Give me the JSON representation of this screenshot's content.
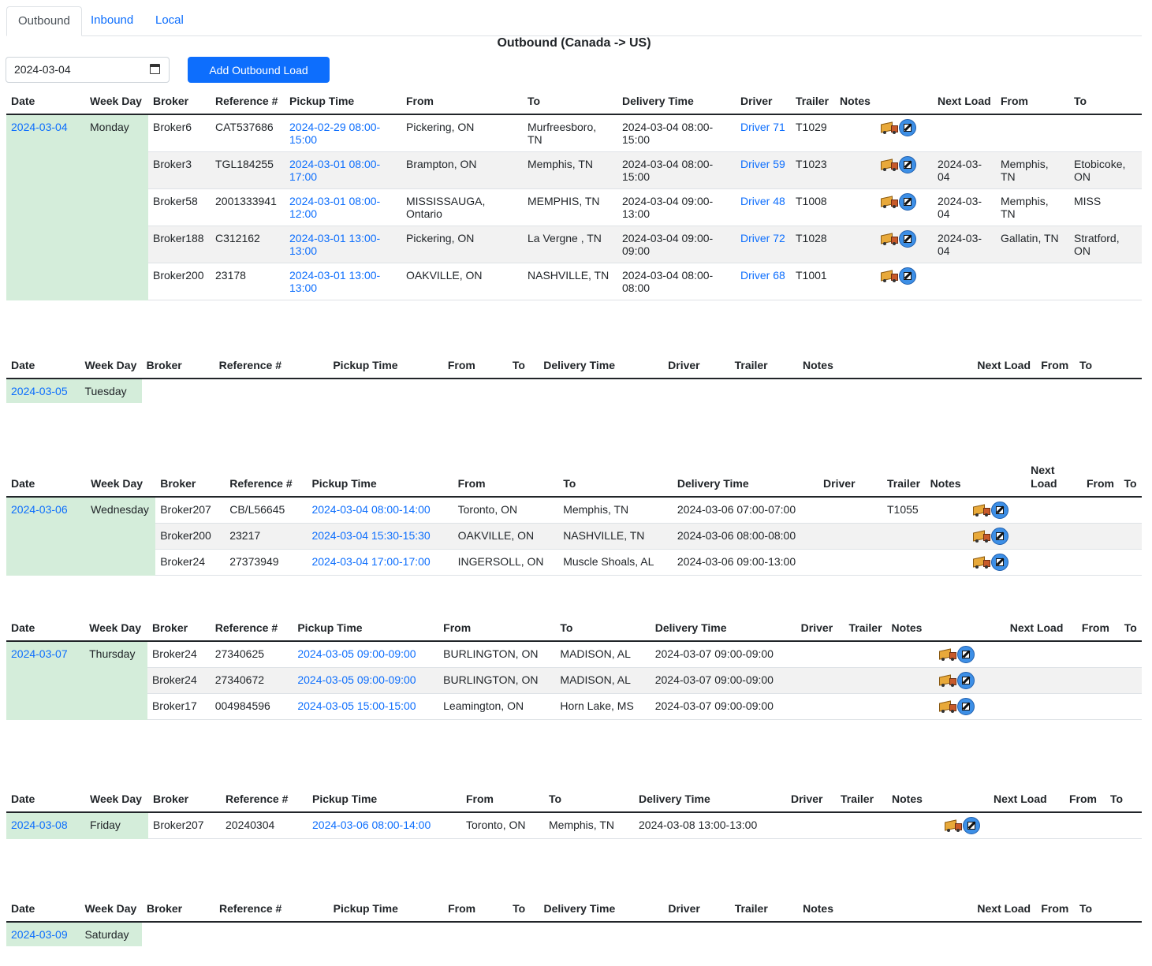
{
  "tabs": [
    "Outbound",
    "Inbound",
    "Local"
  ],
  "page_title": "Outbound (Canada -> US)",
  "date_value": "2024-03-04",
  "add_button": "Add Outbound Load",
  "headers": {
    "date": "Date",
    "weekday": "Week Day",
    "broker": "Broker",
    "reference": "Reference #",
    "pickup": "Pickup Time",
    "from": "From",
    "to": "To",
    "delivery": "Delivery Time",
    "driver": "Driver",
    "trailer": "Trailer",
    "notes": "Notes",
    "next_load": "Next Load",
    "next_from": "From",
    "next_to": "To"
  },
  "days": [
    {
      "date": "2024-03-04",
      "weekday": "Monday",
      "rows": [
        {
          "broker": "Broker6",
          "reference": "CAT537686",
          "pickup": "2024-02-29 08:00-15:00",
          "from": "Pickering, ON",
          "to": "Murfreesboro, TN",
          "delivery": "2024-03-04 08:00-15:00",
          "driver": "Driver 71",
          "trailer": "T1029",
          "notes": "",
          "next_load": "",
          "next_from": "",
          "next_to": ""
        },
        {
          "broker": "Broker3",
          "reference": "TGL184255",
          "pickup": "2024-03-01 08:00-17:00",
          "from": "Brampton, ON",
          "to": "Memphis, TN",
          "delivery": "2024-03-04 08:00-15:00",
          "driver": "Driver 59",
          "trailer": "T1023",
          "notes": "",
          "next_load": "2024-03-04",
          "next_from": "Memphis, TN",
          "next_to": "Etobicoke, ON"
        },
        {
          "broker": "Broker58",
          "reference": "2001333941",
          "pickup": "2024-03-01 08:00-12:00",
          "from": "MISSISSAUGA, Ontario",
          "to": "MEMPHIS, TN",
          "delivery": "2024-03-04 09:00-13:00",
          "driver": "Driver 48",
          "trailer": "T1008",
          "notes": "",
          "next_load": "2024-03-04",
          "next_from": "Memphis, TN",
          "next_to": "MISS"
        },
        {
          "broker": "Broker188",
          "reference": "C312162",
          "pickup": "2024-03-01 13:00-13:00",
          "from": "Pickering, ON",
          "to": "La Vergne , TN",
          "delivery": "2024-03-04 09:00-09:00",
          "driver": "Driver 72",
          "trailer": "T1028",
          "notes": "",
          "next_load": "2024-03-04",
          "next_from": "Gallatin, TN",
          "next_to": "Stratford, ON"
        },
        {
          "broker": "Broker200",
          "reference": "23178",
          "pickup": "2024-03-01 13:00-13:00",
          "from": "OAKVILLE, ON",
          "to": "NASHVILLE, TN",
          "delivery": "2024-03-04 08:00-08:00",
          "driver": "Driver 68",
          "trailer": "T1001",
          "notes": "",
          "next_load": "",
          "next_from": "",
          "next_to": ""
        }
      ]
    },
    {
      "date": "2024-03-05",
      "weekday": "Tuesday",
      "rows": []
    },
    {
      "date": "2024-03-06",
      "weekday": "Wednesday",
      "rows": [
        {
          "broker": "Broker207",
          "reference": "CB/L56645",
          "pickup": "2024-03-04 08:00-14:00",
          "from": "Toronto, ON",
          "to": "Memphis, TN",
          "delivery": "2024-03-06 07:00-07:00",
          "driver": "",
          "trailer": "T1055",
          "notes": "",
          "next_load": "",
          "next_from": "",
          "next_to": ""
        },
        {
          "broker": "Broker200",
          "reference": "23217",
          "pickup": "2024-03-04 15:30-15:30",
          "from": "OAKVILLE, ON",
          "to": "NASHVILLE, TN",
          "delivery": "2024-03-06 08:00-08:00",
          "driver": "",
          "trailer": "",
          "notes": "",
          "next_load": "",
          "next_from": "",
          "next_to": ""
        },
        {
          "broker": "Broker24",
          "reference": "27373949",
          "pickup": "2024-03-04 17:00-17:00",
          "from": "INGERSOLL, ON",
          "to": "Muscle Shoals, AL",
          "delivery": "2024-03-06 09:00-13:00",
          "driver": "",
          "trailer": "",
          "notes": "",
          "next_load": "",
          "next_from": "",
          "next_to": ""
        }
      ]
    },
    {
      "date": "2024-03-07",
      "weekday": "Thursday",
      "rows": [
        {
          "broker": "Broker24",
          "reference": "27340625",
          "pickup": "2024-03-05 09:00-09:00",
          "from": "BURLINGTON, ON",
          "to": "MADISON, AL",
          "delivery": "2024-03-07 09:00-09:00",
          "driver": "",
          "trailer": "",
          "notes": "",
          "next_load": "",
          "next_from": "",
          "next_to": ""
        },
        {
          "broker": "Broker24",
          "reference": "27340672",
          "pickup": "2024-03-05 09:00-09:00",
          "from": "BURLINGTON, ON",
          "to": "MADISON, AL",
          "delivery": "2024-03-07 09:00-09:00",
          "driver": "",
          "trailer": "",
          "notes": "",
          "next_load": "",
          "next_from": "",
          "next_to": ""
        },
        {
          "broker": "Broker17",
          "reference": "004984596",
          "pickup": "2024-03-05 15:00-15:00",
          "from": "Leamington, ON",
          "to": "Horn Lake, MS",
          "delivery": "2024-03-07 09:00-09:00",
          "driver": "",
          "trailer": "",
          "notes": "",
          "next_load": "",
          "next_from": "",
          "next_to": ""
        }
      ]
    },
    {
      "date": "2024-03-08",
      "weekday": "Friday",
      "rows": [
        {
          "broker": "Broker207",
          "reference": "20240304",
          "pickup": "2024-03-06 08:00-14:00",
          "from": "Toronto, ON",
          "to": "Memphis, TN",
          "delivery": "2024-03-08 13:00-13:00",
          "driver": "",
          "trailer": "",
          "notes": "",
          "next_load": "",
          "next_from": "",
          "next_to": ""
        }
      ]
    },
    {
      "date": "2024-03-09",
      "weekday": "Saturday",
      "rows": []
    }
  ],
  "icons": {
    "load": "truck-icon",
    "edit": "edit-icon"
  }
}
